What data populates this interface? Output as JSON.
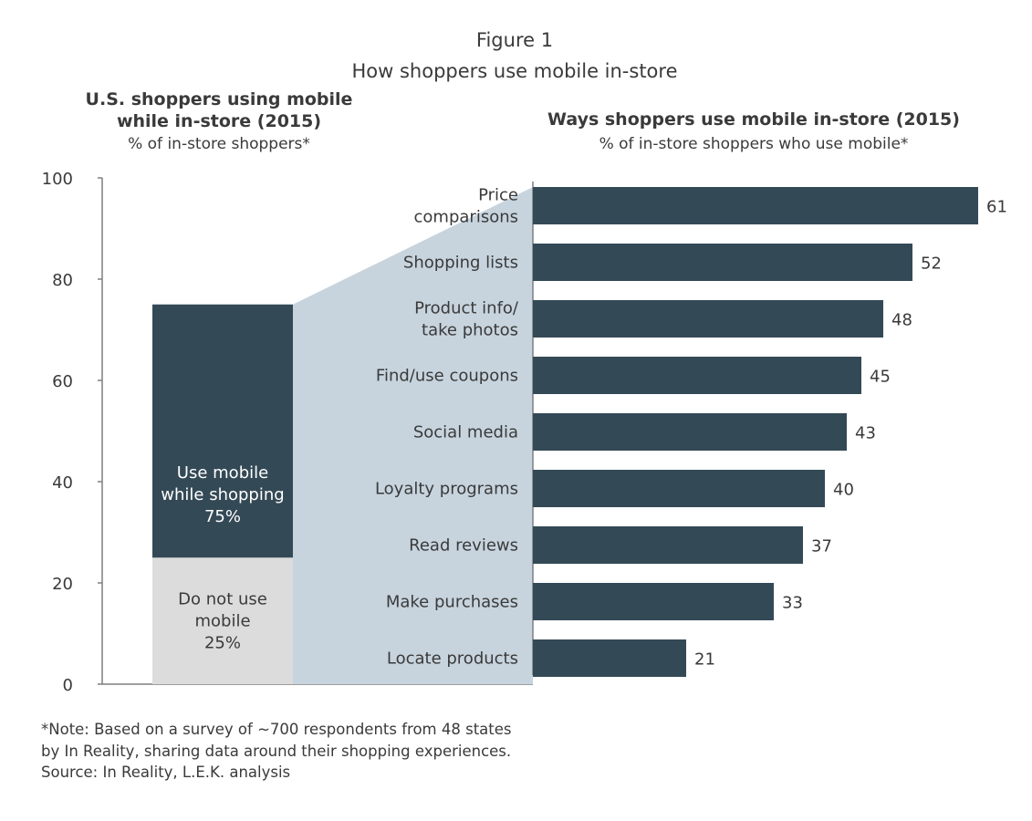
{
  "figure": {
    "label": "Figure 1",
    "title": "How shoppers use mobile in-store"
  },
  "colors": {
    "dark": "#344956",
    "light_gray": "#dcdcdc",
    "connector": "#c7d4de",
    "axis": "#7f7f7f",
    "text": "#3a3a3a"
  },
  "chart_data": [
    {
      "type": "bar",
      "subtype": "stacked-100",
      "title_lines": [
        "U.S. shoppers using mobile",
        "while in-store (2015)"
      ],
      "subtitle": "% of in-store shoppers*",
      "ylim": [
        0,
        100
      ],
      "yticks": [
        "0",
        "20",
        "40",
        "60",
        "80",
        "100"
      ],
      "grid": false,
      "segments": [
        {
          "name": "Use mobile while shopping",
          "value": 75,
          "label_lines": [
            "Use mobile",
            "while shopping",
            "75%"
          ],
          "color": "#344956"
        },
        {
          "name": "Do not use mobile",
          "value": 25,
          "label_lines": [
            "Do not use",
            "mobile",
            "25%"
          ],
          "color": "#dcdcdc"
        }
      ]
    },
    {
      "type": "bar",
      "orientation": "horizontal",
      "title": "Ways shoppers use mobile in-store (2015)",
      "subtitle": "% of in-store shoppers who use mobile*",
      "xlim": [
        0,
        61
      ],
      "grid": false,
      "categories": [
        [
          "Price",
          "comparisons"
        ],
        [
          "Shopping lists"
        ],
        [
          "Product info/",
          "take photos"
        ],
        [
          "Find/use coupons"
        ],
        [
          "Social media"
        ],
        [
          "Loyalty programs"
        ],
        [
          "Read reviews"
        ],
        [
          "Make purchases"
        ],
        [
          "Locate products"
        ]
      ],
      "values": [
        61,
        52,
        48,
        45,
        43,
        40,
        37,
        33,
        21
      ],
      "value_labels": [
        "61",
        "52",
        "48",
        "45",
        "43",
        "40",
        "37",
        "33",
        "21"
      ],
      "color": "#344956"
    }
  ],
  "notes": [
    "*Note: Based on a survey of ~700 respondents from 48 states",
    "by In Reality, sharing data around their shopping experiences.",
    "Source: In Reality, L.E.K. analysis"
  ]
}
